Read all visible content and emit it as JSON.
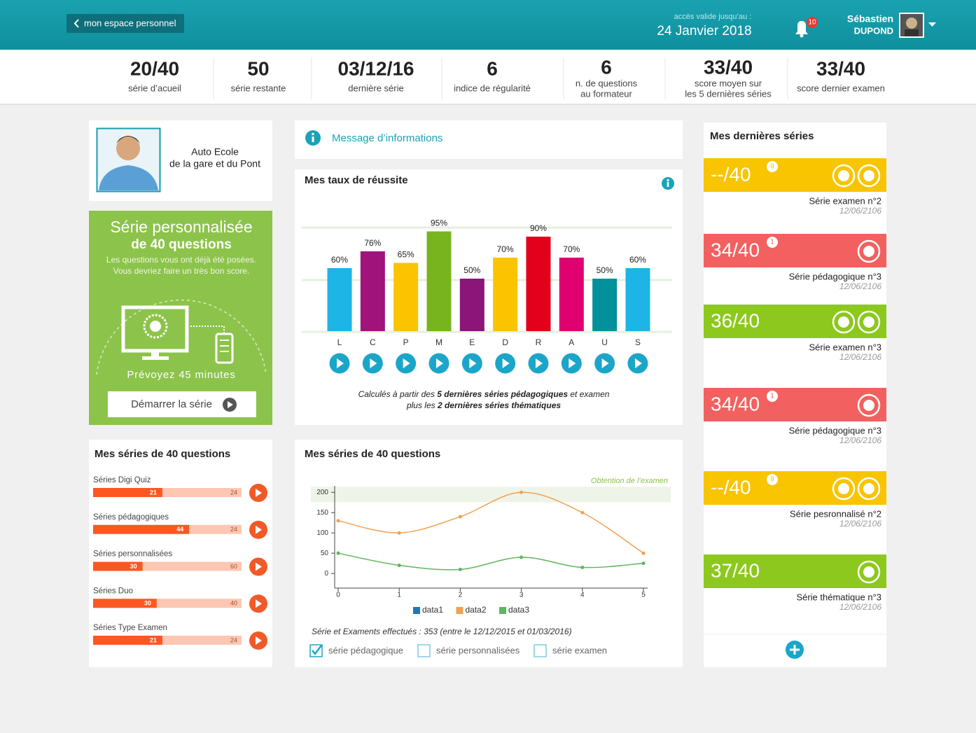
{
  "header": {
    "back": "mon espace personnel",
    "access_label": "accès valide jusqu’au :",
    "access_date": "24 Janvier 2018",
    "notifications": "10",
    "first_name": "Sébastien",
    "last_name": "DUPOND"
  },
  "stats": [
    {
      "value": "20/40",
      "label": [
        "série d’acueil"
      ]
    },
    {
      "value": "50",
      "label": [
        "série restante"
      ]
    },
    {
      "value": "03/12/16",
      "label": [
        "dernière série"
      ]
    },
    {
      "value": "6",
      "label": [
        "indice de régularité"
      ]
    },
    {
      "value": "6",
      "label": [
        "n. de questions",
        "au formateur"
      ]
    },
    {
      "value": "33/40",
      "label": [
        "score moyen sur",
        "les 5 dernières séries"
      ]
    },
    {
      "value": "33/40",
      "label": [
        "score dernier examen"
      ]
    }
  ],
  "school": {
    "name": [
      "Auto Ecole",
      "de la gare et du Pont"
    ]
  },
  "promo": {
    "title": "Série personnalisée",
    "subtitle": "de 40 questions",
    "description": [
      "Les questions vous ont déjà été posées.",
      "Vous devriez faire un très bon score."
    ],
    "duration": "Prévoyez 45 minutes",
    "button": "Démarrer la série"
  },
  "info_message": "Message d’informations",
  "chart_data": [
    {
      "type": "bar",
      "title": "Mes taux de réussite",
      "categories": [
        "L",
        "C",
        "P",
        "M",
        "E",
        "D",
        "R",
        "A",
        "U",
        "S"
      ],
      "values": [
        60,
        76,
        65,
        95,
        50,
        70,
        90,
        70,
        50,
        60
      ],
      "value_labels": [
        "60%",
        "76%",
        "65%",
        "95%",
        "50%",
        "70%",
        "90%",
        "70%",
        "50%",
        "60%"
      ],
      "colors": [
        "#1db4e6",
        "#a0137b",
        "#fbc300",
        "#78b41d",
        "#8c1579",
        "#fbc300",
        "#e3001b",
        "#e0006f",
        "#00919b",
        "#1db4e6"
      ],
      "ylim": [
        0,
        100
      ],
      "footnote": [
        [
          "Calculés à partir des ",
          "5 dernières séries pédagogiques",
          " et examen"
        ],
        [
          "plus les ",
          "2 dernières séries thématiques"
        ]
      ]
    },
    {
      "type": "line",
      "title": "Mes séries de 40 questions",
      "annotation": "Obtention de l’examen",
      "highlight": [
        176,
        214
      ],
      "x": [
        0,
        1,
        2,
        3,
        4,
        5
      ],
      "xlim": [
        0,
        5
      ],
      "xticks": [
        0,
        1,
        2,
        3,
        4,
        5
      ],
      "ylim": [
        -36,
        216
      ],
      "yticks": [
        0,
        50,
        100,
        150,
        200
      ],
      "series": [
        {
          "name": "data1",
          "color": "#1f77b4",
          "values": [
            null,
            null,
            null,
            null,
            null,
            null
          ]
        },
        {
          "name": "data2",
          "color": "#f0a050",
          "values": [
            130,
            100,
            140,
            200,
            150,
            50
          ]
        },
        {
          "name": "data3",
          "color": "#5cb85c",
          "values": [
            50,
            20,
            10,
            40,
            15,
            25
          ]
        }
      ],
      "summary": "Série et Examents effectués : 353 (entre le 12/12/2015 et 01/03/2016)",
      "filters": [
        {
          "label": "série pédagogique",
          "checked": true
        },
        {
          "label": "série personnalisées",
          "checked": false
        },
        {
          "label": "série examen",
          "checked": false
        }
      ]
    }
  ],
  "series_progress": {
    "title": "Mes séries de 40 questions",
    "items": [
      {
        "name": "Séries Digi Quiz",
        "done": 21,
        "total": 24
      },
      {
        "name": "Séries pédagogiques",
        "done": 44,
        "total": 24
      },
      {
        "name": "Séries personnalisées",
        "done": 30,
        "total": 60
      },
      {
        "name": "Séries Duo",
        "done": 30,
        "total": 40
      },
      {
        "name": "Séries Type Examen",
        "done": 21,
        "total": 24
      }
    ]
  },
  "latest": {
    "title": "Mes dernières séries",
    "items": [
      {
        "score": "--/40",
        "badge": "9",
        "name": "Série examen n°2",
        "date": "12/06/2106",
        "color": "#f9c400"
      },
      {
        "score": "34/40",
        "badge": "1",
        "name": "Série pédagogique n°3",
        "date": "12/06/2106",
        "color": "#f26060"
      },
      {
        "score": "36/40",
        "name": "Série examen n°3",
        "date": "12/06/2106",
        "color": "#8cc81e"
      },
      {
        "score": "34/40",
        "badge": "1",
        "name": "Série pédagogique n°3",
        "date": "12/06/2106",
        "color": "#f26060"
      },
      {
        "score": "--/40",
        "badge": "9",
        "name": "Série pesronnalisé n°2",
        "date": "12/06/2106",
        "color": "#f9c400"
      },
      {
        "score": "37/40",
        "name": "Série thématique n°3",
        "date": "12/06/2106",
        "color": "#8cc81e"
      }
    ]
  }
}
